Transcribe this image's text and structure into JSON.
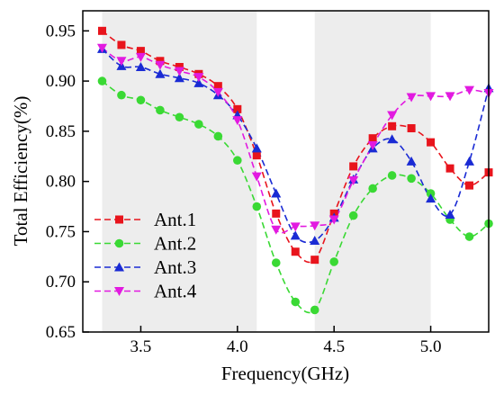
{
  "chart_data": {
    "type": "line",
    "xlabel": "Frequency(GHz)",
    "ylabel": "Total Efficiency(%)",
    "xlim": [
      3.2,
      5.3
    ],
    "ylim": [
      0.65,
      0.97
    ],
    "xticks": [
      3.5,
      4.0,
      4.5,
      5.0
    ],
    "xtick_labels": [
      "3.5",
      "4.0",
      "4.5",
      "5.0"
    ],
    "yticks": [
      0.65,
      0.7,
      0.75,
      0.8,
      0.85,
      0.9,
      0.95
    ],
    "ytick_labels": [
      "0.65",
      "0.70",
      "0.75",
      "0.80",
      "0.85",
      "0.90",
      "0.95"
    ],
    "shaded_bands": [
      [
        3.3,
        4.1
      ],
      [
        4.4,
        5.0
      ]
    ],
    "legend_position": "bottom-left",
    "series": [
      {
        "name": "Ant.1",
        "color": "#e8141c",
        "marker": "square",
        "x": [
          3.3,
          3.4,
          3.5,
          3.6,
          3.7,
          3.8,
          3.9,
          4.0,
          4.1,
          4.2,
          4.3,
          4.4,
          4.5,
          4.6,
          4.7,
          4.8,
          4.9,
          5.0,
          5.1,
          5.2,
          5.3
        ],
        "values": [
          0.95,
          0.936,
          0.93,
          0.92,
          0.914,
          0.907,
          0.895,
          0.872,
          0.826,
          0.768,
          0.73,
          0.722,
          0.768,
          0.815,
          0.843,
          0.855,
          0.853,
          0.839,
          0.813,
          0.796,
          0.809
        ]
      },
      {
        "name": "Ant.2",
        "color": "#3ad934",
        "marker": "circle",
        "x": [
          3.3,
          3.4,
          3.5,
          3.6,
          3.7,
          3.8,
          3.9,
          4.0,
          4.1,
          4.2,
          4.3,
          4.4,
          4.5,
          4.6,
          4.7,
          4.8,
          4.9,
          5.0,
          5.1,
          5.2,
          5.3
        ],
        "values": [
          0.9,
          0.886,
          0.881,
          0.871,
          0.864,
          0.857,
          0.845,
          0.821,
          0.775,
          0.719,
          0.68,
          0.672,
          0.72,
          0.766,
          0.793,
          0.806,
          0.803,
          0.788,
          0.762,
          0.745,
          0.758
        ]
      },
      {
        "name": "Ant.3",
        "color": "#1a2bd4",
        "marker": "triangle-up",
        "x": [
          3.3,
          3.4,
          3.5,
          3.6,
          3.7,
          3.8,
          3.9,
          4.0,
          4.1,
          4.2,
          4.3,
          4.4,
          4.5,
          4.6,
          4.7,
          4.8,
          4.9,
          5.0,
          5.1,
          5.2,
          5.3
        ],
        "values": [
          0.932,
          0.915,
          0.914,
          0.907,
          0.903,
          0.898,
          0.886,
          0.866,
          0.833,
          0.788,
          0.746,
          0.741,
          0.764,
          0.802,
          0.833,
          0.842,
          0.82,
          0.783,
          0.767,
          0.82,
          0.893
        ]
      },
      {
        "name": "Ant.4",
        "color": "#e21ae0",
        "marker": "triangle-down",
        "x": [
          3.3,
          3.4,
          3.5,
          3.6,
          3.7,
          3.8,
          3.9,
          4.0,
          4.1,
          4.2,
          4.3,
          4.4,
          4.5,
          4.6,
          4.7,
          4.8,
          4.9,
          5.0,
          5.1,
          5.2,
          5.3
        ],
        "values": [
          0.933,
          0.92,
          0.924,
          0.916,
          0.91,
          0.904,
          0.889,
          0.861,
          0.805,
          0.752,
          0.755,
          0.756,
          0.762,
          0.801,
          0.836,
          0.866,
          0.884,
          0.885,
          0.885,
          0.891,
          0.888
        ]
      }
    ]
  }
}
